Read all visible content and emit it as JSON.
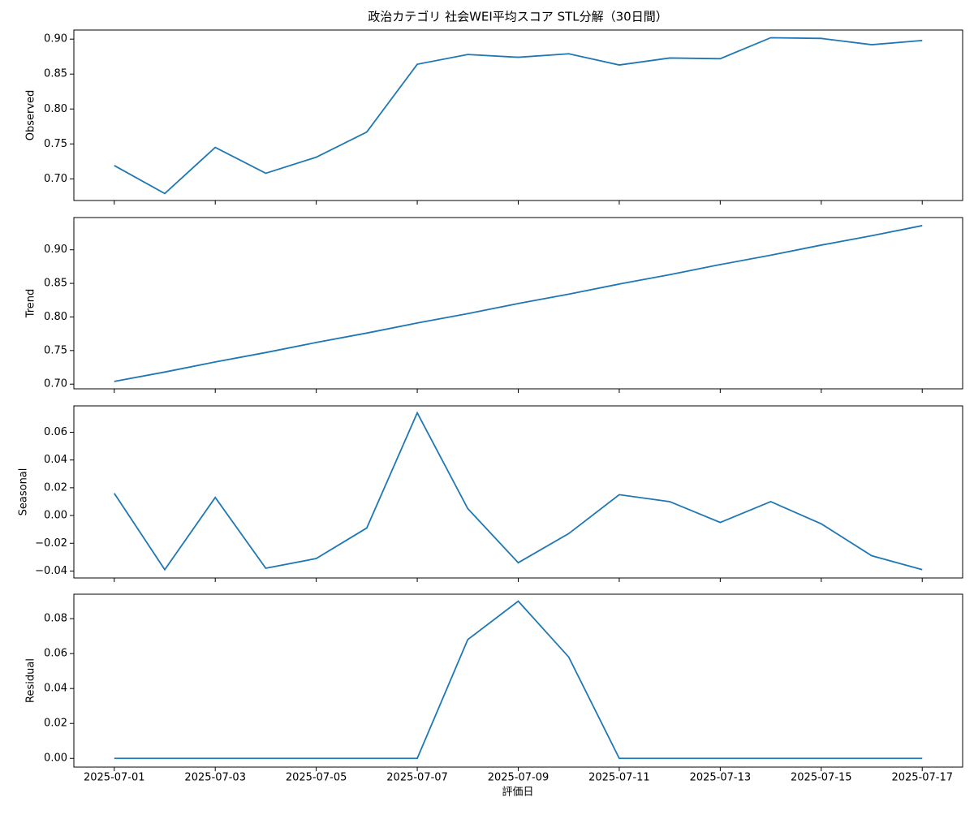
{
  "chart_data": [
    {
      "type": "line",
      "title": "政治カテゴリ 社会WEI平均スコア STL分解（30日間）",
      "ylabel": "Observed",
      "x": [
        "2025-07-01",
        "2025-07-02",
        "2025-07-03",
        "2025-07-04",
        "2025-07-05",
        "2025-07-06",
        "2025-07-07",
        "2025-07-08",
        "2025-07-09",
        "2025-07-10",
        "2025-07-11",
        "2025-07-12",
        "2025-07-13",
        "2025-07-14",
        "2025-07-15",
        "2025-07-16",
        "2025-07-17"
      ],
      "xlim": [
        "2025-06-30T04:48",
        "2025-07-17T19:12"
      ],
      "values": [
        0.719,
        0.679,
        0.745,
        0.708,
        0.731,
        0.767,
        0.864,
        0.878,
        0.874,
        0.879,
        0.863,
        0.873,
        0.872,
        0.902,
        0.901,
        0.892,
        0.898
      ],
      "color": "#1f77b4",
      "ylim": [
        0.669,
        0.913
      ],
      "yticks": [
        {
          "value": 0.7,
          "label": "0.70"
        },
        {
          "value": 0.75,
          "label": "0.75"
        },
        {
          "value": 0.8,
          "label": "0.80"
        },
        {
          "value": 0.85,
          "label": "0.85"
        },
        {
          "value": 0.9,
          "label": "0.90"
        }
      ]
    },
    {
      "type": "line",
      "ylabel": "Trend",
      "x": [
        "2025-07-01",
        "2025-07-02",
        "2025-07-03",
        "2025-07-04",
        "2025-07-05",
        "2025-07-06",
        "2025-07-07",
        "2025-07-08",
        "2025-07-09",
        "2025-07-10",
        "2025-07-11",
        "2025-07-12",
        "2025-07-13",
        "2025-07-14",
        "2025-07-15",
        "2025-07-16",
        "2025-07-17"
      ],
      "xlim": [
        "2025-06-30T04:48",
        "2025-07-17T19:12"
      ],
      "values": [
        0.704,
        0.718,
        0.733,
        0.747,
        0.762,
        0.776,
        0.791,
        0.805,
        0.82,
        0.834,
        0.849,
        0.863,
        0.878,
        0.892,
        0.907,
        0.921,
        0.936
      ],
      "color": "#1f77b4",
      "ylim": [
        0.693,
        0.948
      ],
      "yticks": [
        {
          "value": 0.7,
          "label": "0.70"
        },
        {
          "value": 0.75,
          "label": "0.75"
        },
        {
          "value": 0.8,
          "label": "0.80"
        },
        {
          "value": 0.85,
          "label": "0.85"
        },
        {
          "value": 0.9,
          "label": "0.90"
        }
      ]
    },
    {
      "type": "line",
      "ylabel": "Seasonal",
      "x": [
        "2025-07-01",
        "2025-07-02",
        "2025-07-03",
        "2025-07-04",
        "2025-07-05",
        "2025-07-06",
        "2025-07-07",
        "2025-07-08",
        "2025-07-09",
        "2025-07-10",
        "2025-07-11",
        "2025-07-12",
        "2025-07-13",
        "2025-07-14",
        "2025-07-15",
        "2025-07-16",
        "2025-07-17"
      ],
      "xlim": [
        "2025-06-30T04:48",
        "2025-07-17T19:12"
      ],
      "values": [
        0.016,
        -0.039,
        0.013,
        -0.038,
        -0.031,
        -0.009,
        0.074,
        0.005,
        -0.034,
        -0.013,
        0.015,
        0.01,
        -0.005,
        0.01,
        -0.006,
        -0.029,
        -0.039
      ],
      "color": "#1f77b4",
      "ylim": [
        -0.045,
        0.079
      ],
      "yticks": [
        {
          "value": -0.04,
          "label": "−0.04"
        },
        {
          "value": -0.02,
          "label": "−0.02"
        },
        {
          "value": 0,
          "label": "0.00"
        },
        {
          "value": 0.02,
          "label": "0.02"
        },
        {
          "value": 0.04,
          "label": "0.04"
        },
        {
          "value": 0.06,
          "label": "0.06"
        }
      ]
    },
    {
      "type": "line",
      "ylabel": "Residual",
      "xlabel": "評価日",
      "x": [
        "2025-07-01",
        "2025-07-02",
        "2025-07-03",
        "2025-07-04",
        "2025-07-05",
        "2025-07-06",
        "2025-07-07",
        "2025-07-08",
        "2025-07-09",
        "2025-07-10",
        "2025-07-11",
        "2025-07-12",
        "2025-07-13",
        "2025-07-14",
        "2025-07-15",
        "2025-07-16",
        "2025-07-17"
      ],
      "xlim": [
        "2025-06-30T04:48",
        "2025-07-17T19:12"
      ],
      "xticks": [
        "2025-07-01",
        "2025-07-03",
        "2025-07-05",
        "2025-07-07",
        "2025-07-09",
        "2025-07-11",
        "2025-07-13",
        "2025-07-15",
        "2025-07-17"
      ],
      "values": [
        0,
        0,
        0,
        0,
        0,
        0,
        0,
        0.068,
        0.09,
        0.058,
        0,
        0,
        0,
        0,
        0,
        0,
        0
      ],
      "color": "#1f77b4",
      "ylim": [
        -0.005,
        0.094
      ],
      "yticks": [
        {
          "value": 0,
          "label": "0.00"
        },
        {
          "value": 0.02,
          "label": "0.02"
        },
        {
          "value": 0.04,
          "label": "0.04"
        },
        {
          "value": 0.06,
          "label": "0.06"
        },
        {
          "value": 0.08,
          "label": "0.08"
        }
      ]
    }
  ]
}
